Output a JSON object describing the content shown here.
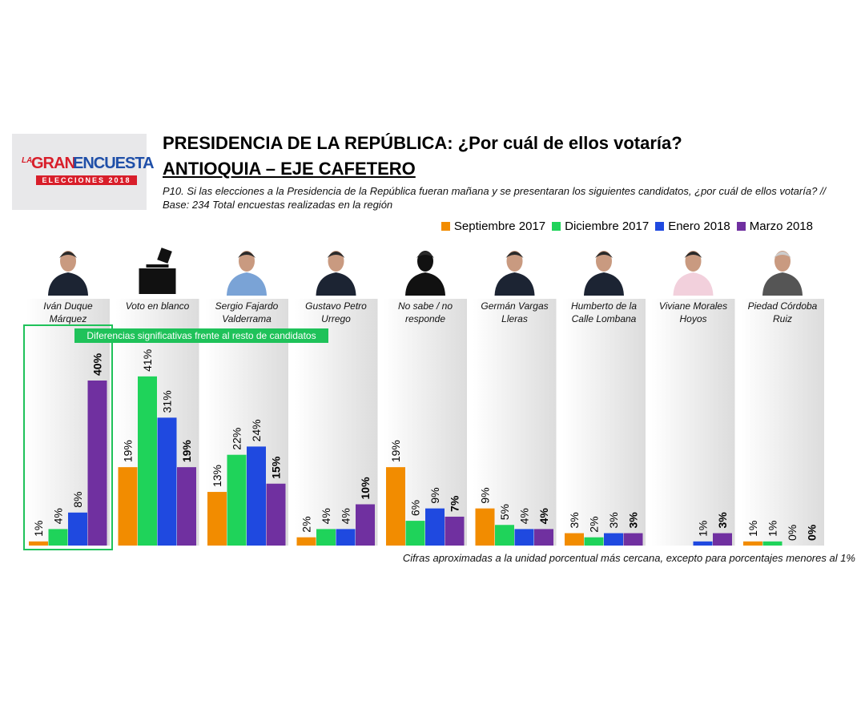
{
  "logo": {
    "pre": "LA",
    "brand1": "GRAN",
    "brand2": "ENCUESTA",
    "band": "ELECCIONES 2018"
  },
  "chart_data": {
    "type": "bar",
    "title": "PRESIDENCIA DE LA REPÚBLICA: ¿Por cuál de ellos votaría?",
    "subtitle": "ANTIOQUIA – EJE CAFETERO",
    "question": "P10. Si las elecciones a la Presidencia de la República fueran mañana y se presentaran los siguientes candidatos, ¿por cuál de ellos votaría?  // Base: 234 Total encuestas realizadas en la región",
    "highlight": "Diferencias significativas frente al resto de candidatos",
    "note": "Cifras aproximadas a la unidad porcentual más cercana, excepto para porcentajes menores al 1%",
    "categories": [
      "Iván Duque Márquez",
      "Voto en blanco",
      "Sergio Fajardo Valderrama",
      "Gustavo Petro Urrego",
      "No sabe / no responde",
      "Germán Vargas Lleras",
      "Humberto de la Calle Lombana",
      "Viviane Morales Hoyos",
      "Piedad Córdoba Ruiz"
    ],
    "series": [
      {
        "name": "Septiembre 2017",
        "color": "#f28c00",
        "values": [
          1,
          19,
          13,
          2,
          19,
          9,
          3,
          null,
          1
        ],
        "value_labels": [
          "1%",
          "19%",
          "13%",
          "2%",
          "19%",
          "9%",
          "3%",
          null,
          "1%"
        ]
      },
      {
        "name": "Diciembre 2017",
        "color": "#1fd35a",
        "values": [
          4,
          41,
          22,
          4,
          6,
          5,
          2,
          null,
          1
        ],
        "value_labels": [
          "4%",
          "41%",
          "22%",
          "4%",
          "6%",
          "5%",
          "2%",
          null,
          "1%"
        ]
      },
      {
        "name": "Enero 2018",
        "color": "#1f49e0",
        "values": [
          8,
          31,
          24,
          4,
          9,
          4,
          3,
          1,
          0
        ],
        "value_labels": [
          "8%",
          "31%",
          "24%",
          "4%",
          "9%",
          "4%",
          "3%",
          "1%",
          "0%"
        ]
      },
      {
        "name": "Marzo 2018",
        "color": "#7030a0",
        "bold": true,
        "values": [
          40,
          19,
          15,
          10,
          7,
          4,
          3,
          3,
          0
        ],
        "value_labels": [
          "40%",
          "19%",
          "15%",
          "10%",
          "7%",
          "4%",
          "3%",
          "3%",
          "0%"
        ]
      }
    ]
  }
}
